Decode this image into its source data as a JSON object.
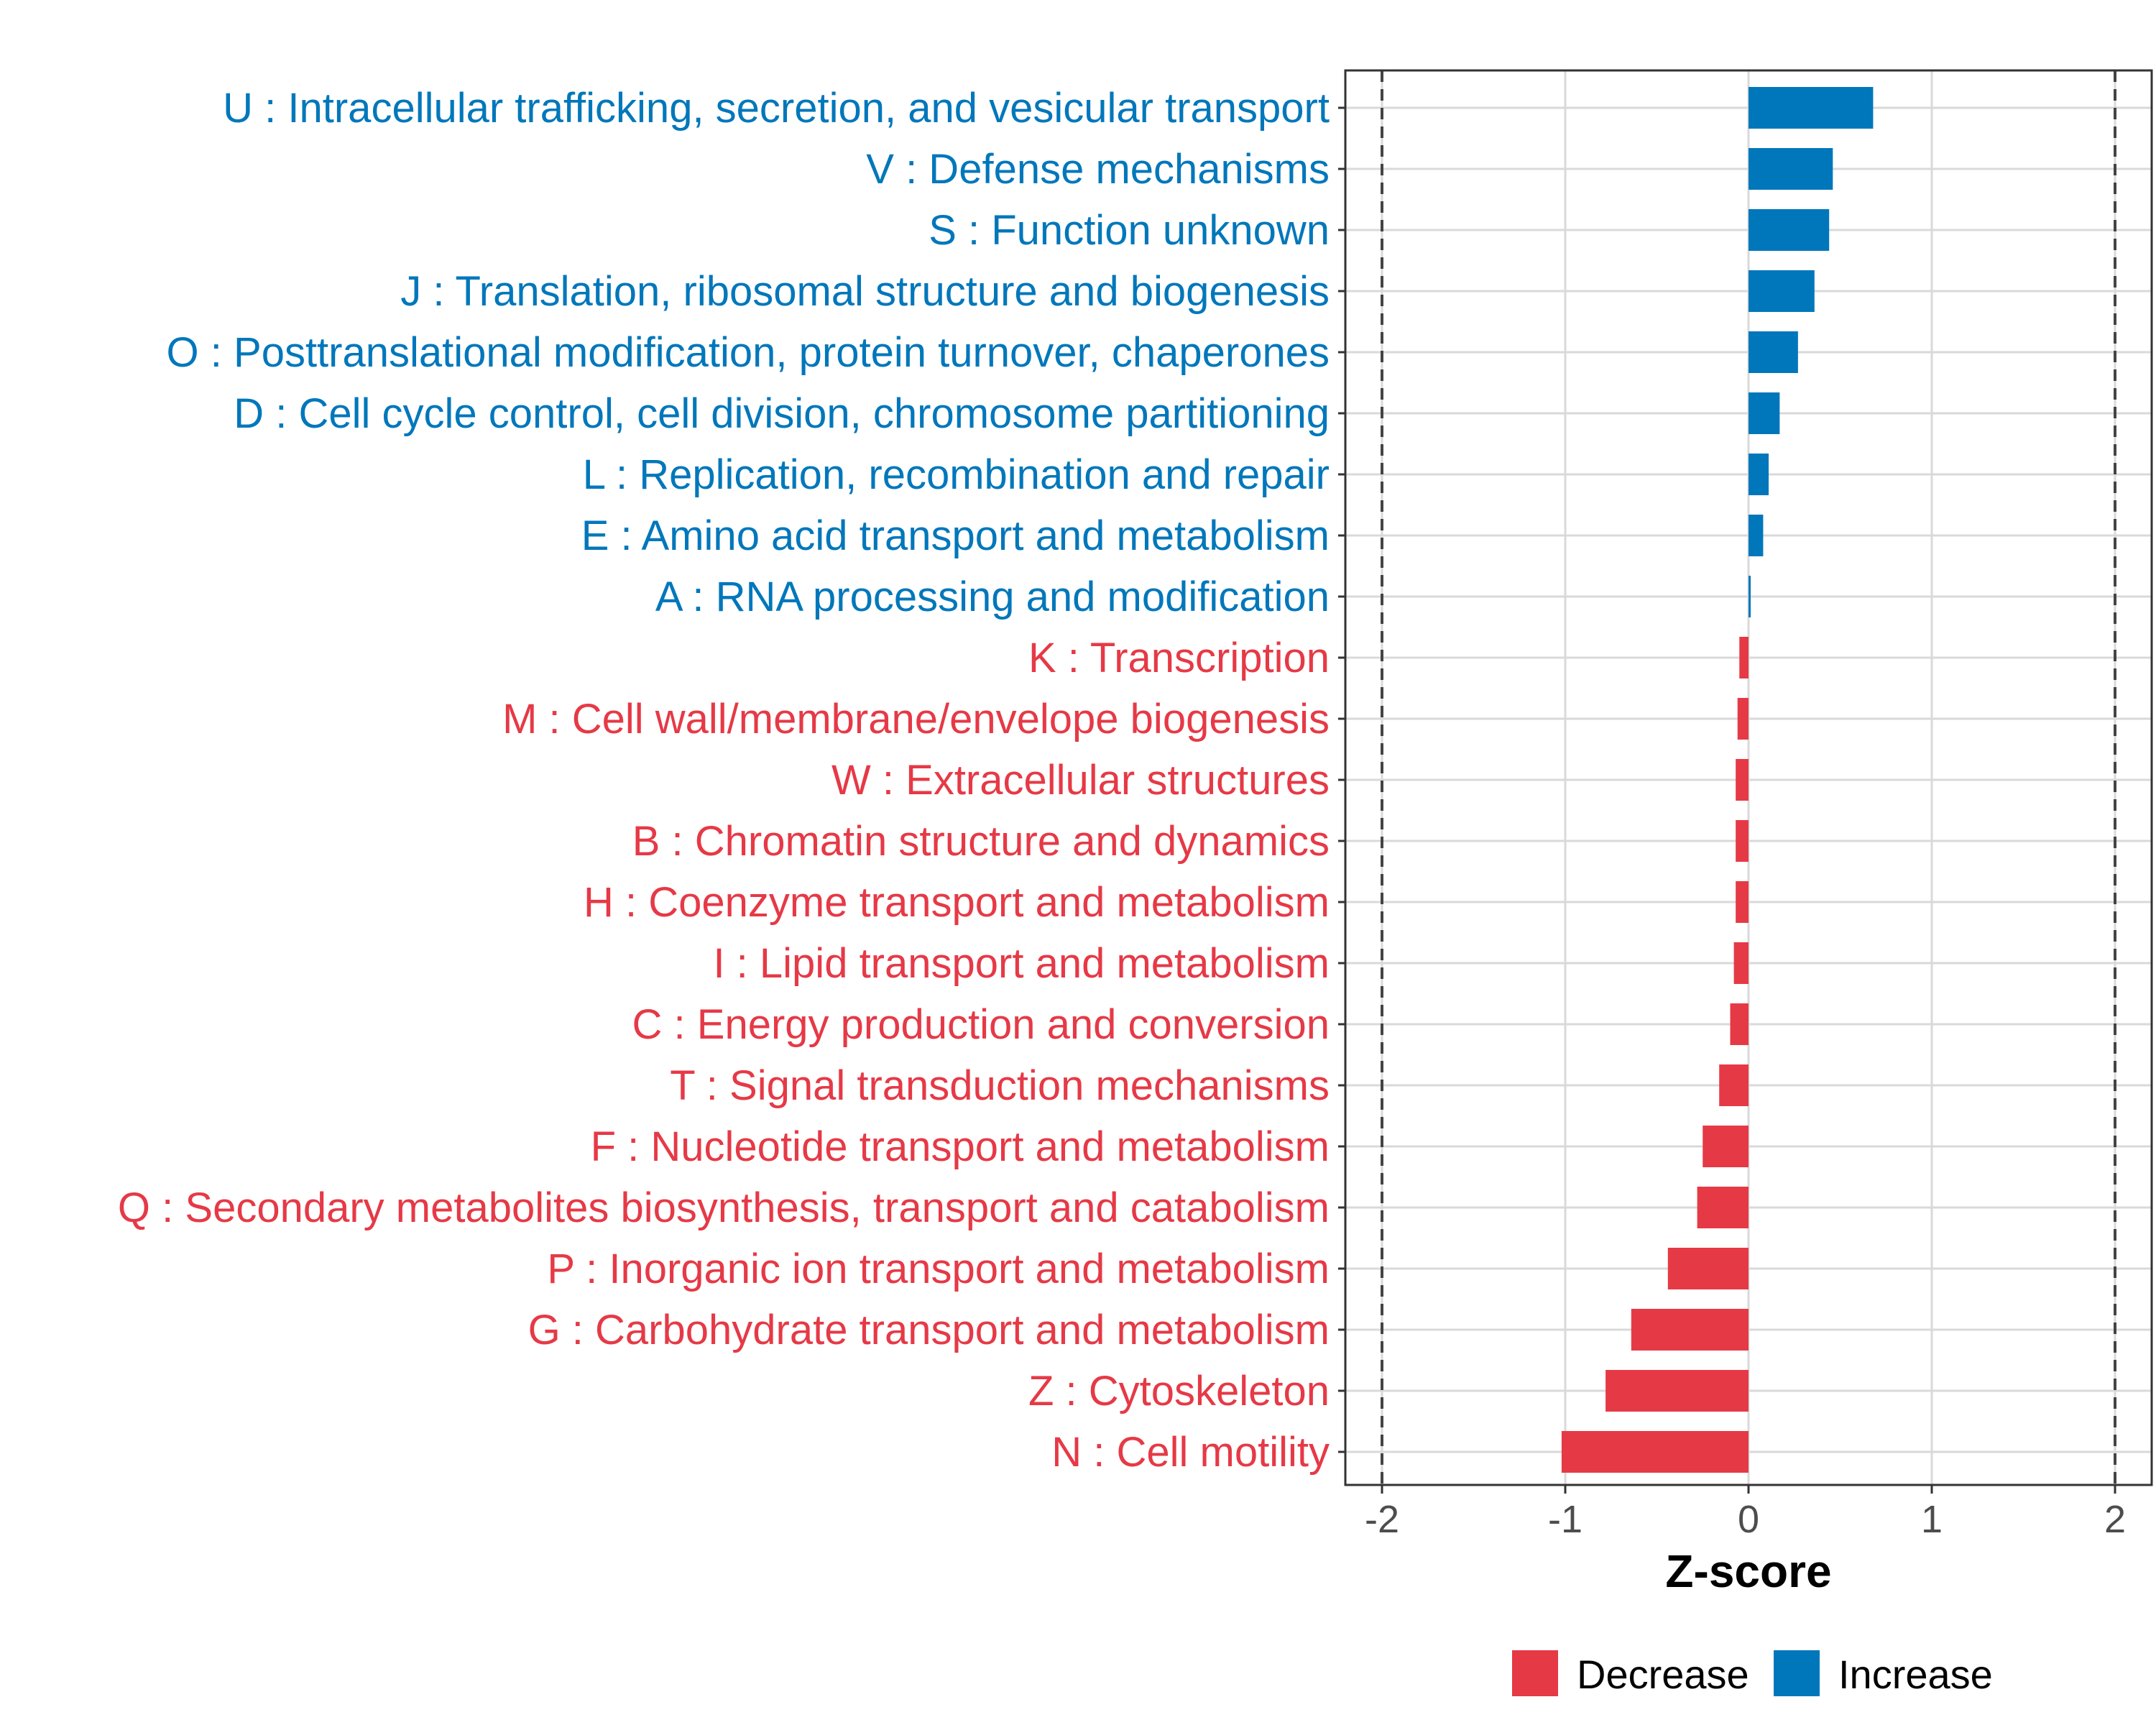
{
  "chart_data": {
    "type": "bar",
    "orientation": "horizontal",
    "xlabel": "Z-score",
    "ylabel": "",
    "xlim": [
      -2.2,
      2.2
    ],
    "xticks": [
      -2,
      -1,
      0,
      1,
      2
    ],
    "xtick_labels": [
      "-2",
      "-1",
      "0",
      "1",
      "2"
    ],
    "reference_lines": [
      -2,
      2
    ],
    "grid": true,
    "legend": {
      "placement": "bottom",
      "items": [
        {
          "label": "Decrease",
          "color": "#E63946"
        },
        {
          "label": "Increase",
          "color": "#0077BB"
        }
      ]
    },
    "categories": [
      {
        "label": "U : Intracellular trafficking, secretion, and vesicular transport",
        "value": 0.68,
        "direction": "Increase"
      },
      {
        "label": "V : Defense mechanisms",
        "value": 0.46,
        "direction": "Increase"
      },
      {
        "label": "S : Function unknown",
        "value": 0.44,
        "direction": "Increase"
      },
      {
        "label": "J : Translation, ribosomal structure and biogenesis",
        "value": 0.36,
        "direction": "Increase"
      },
      {
        "label": "O : Posttranslational modification, protein turnover, chaperones",
        "value": 0.27,
        "direction": "Increase"
      },
      {
        "label": "D : Cell cycle control, cell division, chromosome partitioning",
        "value": 0.17,
        "direction": "Increase"
      },
      {
        "label": "L : Replication, recombination and repair",
        "value": 0.11,
        "direction": "Increase"
      },
      {
        "label": "E : Amino acid transport and metabolism",
        "value": 0.08,
        "direction": "Increase"
      },
      {
        "label": "A : RNA processing and modification",
        "value": 0.01,
        "direction": "Increase"
      },
      {
        "label": "K : Transcription",
        "value": -0.05,
        "direction": "Decrease"
      },
      {
        "label": "M : Cell wall/membrane/envelope biogenesis",
        "value": -0.06,
        "direction": "Decrease"
      },
      {
        "label": "W : Extracellular structures",
        "value": -0.07,
        "direction": "Decrease"
      },
      {
        "label": "B : Chromatin structure and dynamics",
        "value": -0.07,
        "direction": "Decrease"
      },
      {
        "label": "H : Coenzyme transport and metabolism",
        "value": -0.07,
        "direction": "Decrease"
      },
      {
        "label": "I : Lipid transport and metabolism",
        "value": -0.08,
        "direction": "Decrease"
      },
      {
        "label": "C : Energy production and conversion",
        "value": -0.1,
        "direction": "Decrease"
      },
      {
        "label": "T : Signal transduction mechanisms",
        "value": -0.16,
        "direction": "Decrease"
      },
      {
        "label": "F : Nucleotide transport and metabolism",
        "value": -0.25,
        "direction": "Decrease"
      },
      {
        "label": "Q : Secondary metabolites biosynthesis, transport and catabolism",
        "value": -0.28,
        "direction": "Decrease"
      },
      {
        "label": "P : Inorganic ion transport and metabolism",
        "value": -0.44,
        "direction": "Decrease"
      },
      {
        "label": "G : Carbohydrate transport and metabolism",
        "value": -0.64,
        "direction": "Decrease"
      },
      {
        "label": "Z : Cytoskeleton",
        "value": -0.78,
        "direction": "Decrease"
      },
      {
        "label": "N : Cell motility",
        "value": -1.02,
        "direction": "Decrease"
      }
    ]
  }
}
